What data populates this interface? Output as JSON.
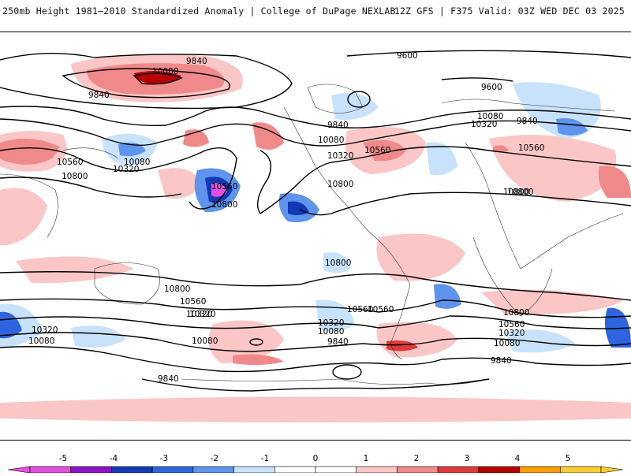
{
  "header": {
    "title": "250mb Height 1981–2010 Standardized Anomaly | College of DuPage NEXLAB",
    "run_info": "12Z GFS | F375 Valid: 03Z WED DEC 03 2025"
  },
  "map": {
    "contour_labels": [
      "9840",
      "10080",
      "9840",
      "9600",
      "9600",
      "9840",
      "10080",
      "10320",
      "9840",
      "10560",
      "10080",
      "10320",
      "10800",
      "10080",
      "10560",
      "10320",
      "10800",
      "10560",
      "10800",
      "10560",
      "10800",
      "10800",
      "10800",
      "10560",
      "10320",
      "10080",
      "10800",
      "10560",
      "10320",
      "10080",
      "10320",
      "10080",
      "9840",
      "10560",
      "10800",
      "10560",
      "10320",
      "10080",
      "9840",
      "9840",
      "10320"
    ]
  },
  "colorbar": {
    "ticks": [
      "-5",
      "-4",
      "-3",
      "-2",
      "-1",
      "0",
      "1",
      "2",
      "3",
      "4",
      "5"
    ],
    "colors": [
      "#e44fe0",
      "#8a14c8",
      "#1238b4",
      "#2f64e0",
      "#5e93ee",
      "#c9e2fb",
      "#ffffff",
      "#ffffff",
      "#fbc6c6",
      "#f08a8a",
      "#dd3a3a",
      "#b80000",
      "#ff9c00",
      "#ffcc33"
    ]
  }
}
